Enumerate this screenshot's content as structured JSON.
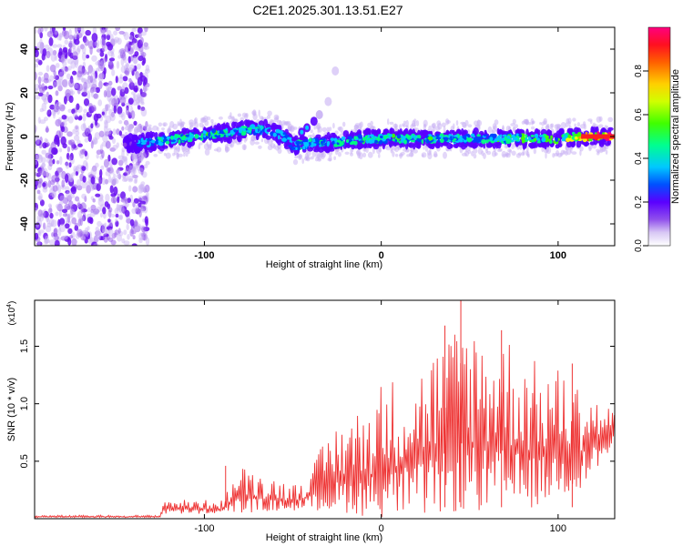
{
  "title": "C2E1.2025.301.13.51.E27",
  "chart_data": [
    {
      "type": "heatmap",
      "xlabel": "Height of straight line (km)",
      "ylabel": "Frequency (Hz)",
      "xlim": [
        -196,
        132
      ],
      "ylim": [
        -50,
        50
      ],
      "xticks": [
        -100,
        0,
        100
      ],
      "xtick_labels": [
        "-100",
        "0",
        "100"
      ],
      "yticks": [
        -40,
        -20,
        0,
        20,
        40
      ],
      "ytick_labels": [
        "-40",
        "-20",
        "0",
        "20",
        "40"
      ],
      "colorbar": {
        "label": "Normalized spectral amplitude",
        "range": [
          0.0,
          1.0
        ],
        "ticks": [
          0.0,
          0.2,
          0.4,
          0.6,
          0.8
        ],
        "tick_labels": [
          "0.0",
          "0.2",
          "0.4",
          "0.6",
          "0.8"
        ],
        "colors": [
          "#ffffff",
          "#c8a8f0",
          "#8a40e8",
          "#5a00ff",
          "#0040ff",
          "#00c8ff",
          "#00ff80",
          "#40ff00",
          "#ffff00",
          "#ffa000",
          "#ff2000",
          "#ff0080"
        ]
      },
      "noise_region_x": [
        -196,
        -132
      ],
      "ridge": {
        "x": [
          -145,
          -135,
          -125,
          -115,
          -105,
          -95,
          -85,
          -75,
          -65,
          -60,
          -55,
          -50,
          -45,
          -40,
          -30,
          -20,
          -10,
          0,
          10,
          20,
          30,
          40,
          50,
          60,
          70,
          80,
          90,
          100,
          110,
          120,
          130
        ],
        "y": [
          -4,
          -3,
          -2,
          -1,
          0,
          1,
          2,
          3,
          3,
          2,
          0,
          -4,
          -4,
          -3,
          -3,
          -2,
          -1,
          -1,
          -1,
          -1,
          -1,
          -1,
          -1,
          -1,
          -1,
          -1,
          -1,
          -1,
          0,
          0,
          0
        ],
        "amp": [
          0.3,
          0.45,
          0.5,
          0.55,
          0.55,
          0.55,
          0.55,
          0.55,
          0.5,
          0.45,
          0.4,
          0.45,
          0.5,
          0.5,
          0.5,
          0.5,
          0.55,
          0.55,
          0.55,
          0.55,
          0.55,
          0.5,
          0.5,
          0.55,
          0.55,
          0.6,
          0.6,
          0.6,
          0.7,
          0.95,
          0.98
        ]
      },
      "side_branch": {
        "x": [
          -45,
          -42,
          -38,
          -35,
          -30,
          -26
        ],
        "y": [
          2,
          4,
          7,
          10,
          16,
          30
        ]
      }
    },
    {
      "type": "line",
      "xlabel": "Height of straight line (km)",
      "ylabel": "SNR (10 * v/v)",
      "scale_label": "(x10",
      "scale_exponent": "4",
      "color": "#ee3333",
      "xlim": [
        -196,
        132
      ],
      "ylim": [
        0,
        1.9
      ],
      "xticks": [
        -100,
        0,
        100
      ],
      "xtick_labels": [
        "-100",
        "0",
        "100"
      ],
      "yticks": [
        0.5,
        1.0,
        1.5
      ],
      "ytick_labels": [
        "0.5",
        "1.0",
        "1.5"
      ],
      "envelope": {
        "x": [
          -196,
          -125,
          -124,
          -90,
          -80,
          -50,
          -40,
          -30,
          -20,
          -10,
          0,
          10,
          20,
          30,
          40,
          45,
          50,
          60,
          70,
          80,
          90,
          100,
          110,
          120,
          132
        ],
        "min": [
          0.01,
          0.01,
          0.04,
          0.04,
          0.05,
          0.07,
          0.08,
          0.05,
          0.05,
          0.02,
          0.01,
          0.02,
          0.02,
          0.02,
          0.05,
          0.05,
          0.05,
          0.05,
          0.05,
          0.08,
          0.1,
          0.2,
          0.22,
          0.4,
          0.6
        ],
        "max": [
          0.03,
          0.03,
          0.17,
          0.16,
          0.46,
          0.3,
          0.42,
          0.75,
          0.92,
          0.96,
          1.2,
          1.25,
          1.3,
          1.5,
          1.6,
          1.9,
          1.75,
          1.6,
          1.65,
          1.45,
          1.35,
          1.32,
          1.2,
          1.08,
          0.95
        ]
      },
      "spikes": [
        {
          "x": -88,
          "y": 0.46
        },
        {
          "x": 45,
          "y": 1.9
        },
        {
          "x": 36,
          "y": 1.68
        },
        {
          "x": 68,
          "y": 1.64
        },
        {
          "x": 108,
          "y": 1.35
        }
      ]
    }
  ]
}
